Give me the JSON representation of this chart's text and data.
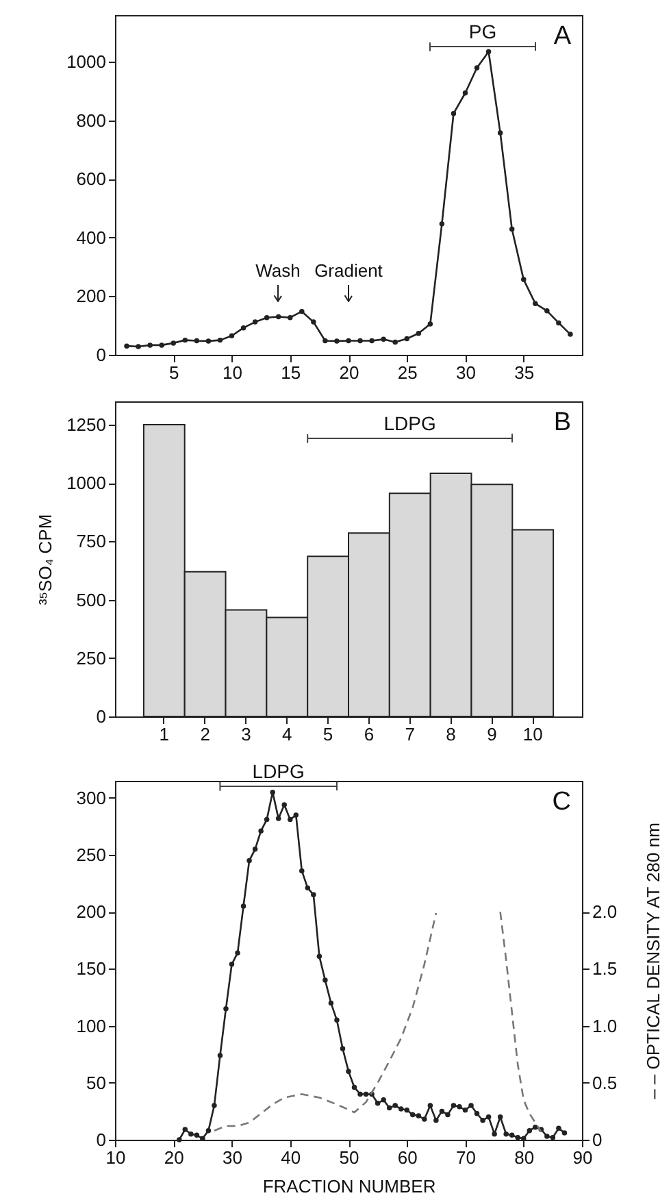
{
  "chart_data": [
    {
      "type": "line",
      "x": [
        1,
        2,
        3,
        4,
        5,
        6,
        7,
        8,
        9,
        10,
        11,
        12,
        13,
        14,
        15,
        16,
        17,
        18,
        19,
        20,
        21,
        22,
        23,
        24,
        25,
        26,
        27,
        28,
        29,
        30,
        31,
        32,
        33,
        34,
        35,
        36,
        37,
        38,
        39
      ],
      "series": [
        {
          "color": "#222222",
          "values": [
            30,
            28,
            33,
            33,
            40,
            50,
            48,
            47,
            50,
            65,
            92,
            112,
            127,
            130,
            127,
            148,
            112,
            48,
            47,
            48,
            48,
            48,
            53,
            43,
            55,
            73,
            105,
            447,
            824,
            894,
            980,
            1035,
            758,
            429,
            257,
            175,
            150,
            109,
            70
          ]
        }
      ],
      "marker": "circle",
      "line_style": "solid",
      "grid": false,
      "xlim": [
        0,
        40
      ],
      "xticks": [
        5,
        10,
        15,
        20,
        25,
        30,
        35
      ],
      "ylim": [
        0,
        1160
      ],
      "yticks": [
        0,
        200,
        400,
        600,
        800,
        1000
      ],
      "annotations": [
        "A",
        "PG",
        "Wash",
        "Gradient"
      ]
    },
    {
      "type": "bar",
      "categories": [
        "1",
        "2",
        "3",
        "4",
        "5",
        "6",
        "7",
        "8",
        "9",
        "10"
      ],
      "values": [
        1250,
        620,
        456,
        424,
        686,
        786,
        956,
        1042,
        994,
        800
      ],
      "color": "#d9d9d9",
      "grid": false,
      "ylabel": "³⁵SO₄ CPM",
      "ylim": [
        0,
        1350
      ],
      "yticks": [
        0,
        250,
        500,
        750,
        1000,
        1250
      ],
      "annotations": [
        "B",
        "LDPG"
      ]
    },
    {
      "type": "line",
      "xlabel": "FRACTION NUMBER",
      "y2label": "– – OPTICAL DENSITY AT 280 nm",
      "grid": false,
      "marker": "circle",
      "xlim": [
        10,
        90
      ],
      "xticks": [
        10,
        20,
        30,
        40,
        50,
        60,
        70,
        80,
        90
      ],
      "ylim": [
        0,
        315
      ],
      "yticks": [
        0,
        50,
        100,
        150,
        200,
        250,
        300
      ],
      "y2lim": [
        0,
        3.15
      ],
      "y2ticks": [
        0,
        0.5,
        {
          "value": 1,
          "label": "1.0"
        },
        1.5,
        {
          "value": 2,
          "label": "2.0"
        }
      ],
      "series": [
        {
          "color": "#222222",
          "x": [
            21,
            22,
            23,
            24,
            25,
            26,
            27,
            28,
            29,
            30,
            31,
            32,
            33,
            34,
            35,
            36,
            37,
            38,
            39,
            40,
            41,
            42,
            43,
            44,
            45,
            46,
            47,
            48,
            49,
            50,
            51,
            52,
            53,
            54,
            55,
            56,
            57,
            58,
            59,
            60,
            61,
            62,
            63,
            64,
            65,
            66,
            67,
            68,
            69,
            70,
            71,
            72,
            73,
            74,
            75,
            76,
            77,
            78,
            79,
            80,
            81,
            82,
            83,
            84,
            85,
            86,
            87
          ],
          "values": [
            0,
            9,
            5,
            4,
            1,
            8,
            30,
            74,
            115,
            154,
            164,
            205,
            245,
            255,
            271,
            281,
            305,
            282,
            294,
            281,
            285,
            236,
            221,
            215,
            161,
            140,
            120,
            105,
            80,
            60,
            46,
            40,
            40,
            40,
            32,
            35,
            28,
            30,
            27,
            26,
            22,
            21,
            18,
            30,
            17,
            25,
            22,
            30,
            29,
            26,
            30,
            23,
            17,
            20,
            5,
            20,
            5,
            4,
            2,
            1,
            8,
            11,
            9,
            3,
            2,
            10,
            6
          ]
        },
        {
          "color": "#777777",
          "axis": "y2",
          "line_style": "dashed",
          "marker": "none",
          "x": [
            27,
            29,
            31,
            33,
            35,
            37,
            39,
            42,
            45,
            48,
            51,
            53,
            55,
            57,
            59,
            61,
            63,
            65,
            70,
            76,
            77,
            78,
            79,
            80,
            81,
            82,
            83
          ],
          "values": [
            0.08,
            0.12,
            0.12,
            0.15,
            0.23,
            0.31,
            0.37,
            0.4,
            0.37,
            0.31,
            0.24,
            0.33,
            0.5,
            0.69,
            0.89,
            1.16,
            1.54,
            1.99,
            null,
            2.0,
            1.58,
            1.12,
            0.66,
            0.35,
            0.23,
            0.15,
            0.07
          ]
        }
      ],
      "annotations": [
        "C",
        "LDPG"
      ]
    }
  ]
}
